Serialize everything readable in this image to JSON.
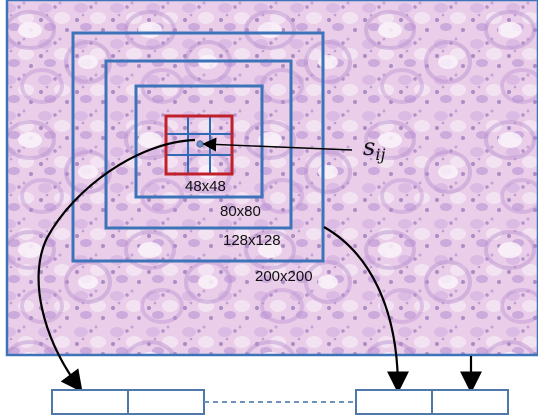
{
  "diagram": {
    "scales": [
      {
        "label": "200x200"
      },
      {
        "label": "128x128"
      },
      {
        "label": "80x80"
      },
      {
        "label": "48x48"
      }
    ],
    "pixel_label": {
      "base": "s",
      "subscript": "ij"
    },
    "colors": {
      "tissue_background": "#e9cde9",
      "tissue_cell": "#b98fcf",
      "tissue_nucleus": "#7a5aa8",
      "scale_box": "#3d73b8",
      "center_box": "#c0202a",
      "grid_lines": "#2f6bb5",
      "pixel_dot": "#6b8fc8",
      "arrow": "#000000",
      "feature_cell_border": "#4f79a8",
      "dashed_link": "#6f93bf"
    }
  }
}
